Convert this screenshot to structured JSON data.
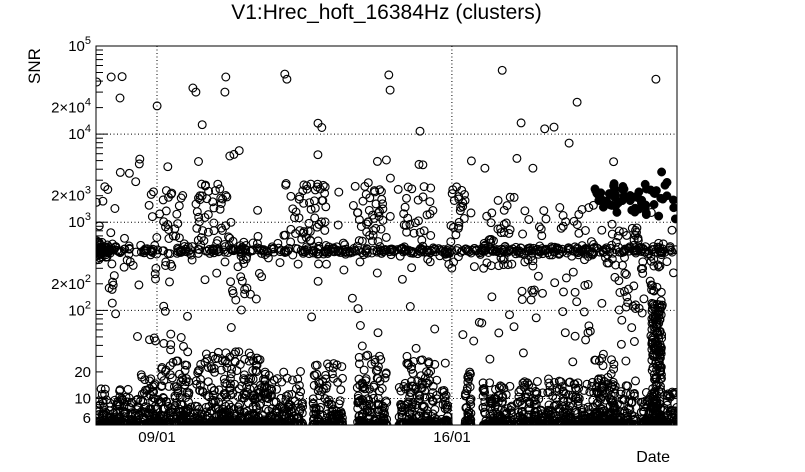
{
  "chart_data": {
    "type": "scatter",
    "title": "V1:Hrec_hoft_16384Hz (clusters)",
    "xlabel": "Date",
    "ylabel": "SNR",
    "background_color": "#ffffff",
    "marker_color": "#000000",
    "grid": "dotted",
    "x_axis": {
      "title": "Date",
      "range_days": 13.79,
      "labeled_ticks": [
        {
          "day": 1.447,
          "label": "09/01"
        },
        {
          "day": 8.447,
          "label": "16/01"
        }
      ],
      "minor_tick_start_day": 0.447,
      "minor_tick_step_days": 1
    },
    "y_axis": {
      "title": "SNR",
      "scale": "log",
      "min": 5,
      "max": 100000,
      "gridline_values": [
        10,
        100,
        1000,
        10000
      ],
      "labeled_ticks": [
        {
          "value": 100000,
          "mantissa": "10",
          "exp": "5"
        },
        {
          "value": 20000,
          "mantissa": "2×10",
          "exp": "4"
        },
        {
          "value": 10000,
          "mantissa": "10",
          "exp": "4"
        },
        {
          "value": 2000,
          "mantissa": "2×10",
          "exp": "3"
        },
        {
          "value": 1000,
          "mantissa": "10",
          "exp": "3"
        },
        {
          "value": 200,
          "mantissa": "2×10",
          "exp": "2"
        },
        {
          "value": 100,
          "mantissa": "10",
          "exp": "2"
        },
        {
          "value": 20,
          "mantissa": "20",
          "exp": ""
        },
        {
          "value": 10,
          "mantissa": "10",
          "exp": ""
        },
        {
          "value": 6,
          "mantissa": "6",
          "exp": ""
        }
      ]
    },
    "series": {
      "marker": "open-circle",
      "marker_radius": 3.9,
      "filled_marker_radius": 4.2,
      "seed": 42,
      "noise_mounds": [
        {
          "d0": 0.0,
          "d1": 1.0,
          "top_snr": 13,
          "n": 150,
          "p": 3
        },
        {
          "d0": 1.0,
          "d1": 1.55,
          "top_snr": 19,
          "n": 95,
          "p": 3
        },
        {
          "d0": 1.55,
          "d1": 2.5,
          "top_snr": 27,
          "n": 180,
          "p": 3
        },
        {
          "d0": 2.5,
          "d1": 3.9,
          "top_snr": 34,
          "n": 300,
          "p": 3
        },
        {
          "d0": 3.9,
          "d1": 4.91,
          "top_snr": 21,
          "n": 180,
          "p": 3
        },
        {
          "d0": 5.15,
          "d1": 5.86,
          "top_snr": 26,
          "n": 130,
          "p": 3
        },
        {
          "d0": 6.19,
          "d1": 6.91,
          "top_snr": 33,
          "n": 140,
          "p": 3
        },
        {
          "d0": 7.19,
          "d1": 8.09,
          "top_snr": 28,
          "n": 180,
          "p": 3
        },
        {
          "d0": 8.19,
          "d1": 8.38,
          "top_snr": 14,
          "n": 32,
          "p": 3
        },
        {
          "d0": 8.76,
          "d1": 8.9,
          "top_snr": 22,
          "n": 42,
          "p": 2.2
        },
        {
          "d0": 9.17,
          "d1": 9.87,
          "top_snr": 17,
          "n": 125,
          "p": 3
        },
        {
          "d0": 9.99,
          "d1": 10.82,
          "top_snr": 17,
          "n": 145,
          "p": 3
        },
        {
          "d0": 10.82,
          "d1": 12.81,
          "top_snr": 16,
          "n": 340,
          "p": 3
        },
        {
          "d0": 11.8,
          "d1": 12.3,
          "top_snr": 30,
          "n": 80,
          "p": 2.5
        },
        {
          "d0": 12.93,
          "d1": 13.19,
          "top_snr": 13,
          "n": 48,
          "p": 3
        },
        {
          "d0": 13.19,
          "d1": 13.43,
          "top_snr": 130,
          "n": 175,
          "p": 1.3
        },
        {
          "d0": 13.43,
          "d1": 13.79,
          "top_snr": 12,
          "n": 60,
          "p": 3
        }
      ],
      "band": {
        "center_snr": 480,
        "sigma_log": 0.022,
        "n": 430,
        "d0": 0,
        "d1": 13.79,
        "fuzz_n": 80,
        "fuzz_sigma_log": 0.12,
        "left_blob": {
          "d0": 0,
          "d1": 0.3,
          "n": 40,
          "sigma_log": 0.05
        }
      },
      "clusters": [
        {
          "d0": 0.0,
          "d1": 0.45,
          "n": 14,
          "snr_lo": 100,
          "snr_hi": 2600
        },
        {
          "d0": 1.3,
          "d1": 1.8,
          "n": 20,
          "snr_lo": 30,
          "snr_hi": 2200
        },
        {
          "d0": 1.55,
          "d1": 2.1,
          "n": 14,
          "snr_lo": 500,
          "snr_hi": 2500
        },
        {
          "d0": 2.37,
          "d1": 3.16,
          "n": 42,
          "snr_lo": 550,
          "snr_hi": 2800
        },
        {
          "d0": 3.16,
          "d1": 3.9,
          "n": 20,
          "snr_lo": 100,
          "snr_hi": 1200
        },
        {
          "d0": 4.58,
          "d1": 5.46,
          "n": 42,
          "snr_lo": 600,
          "snr_hi": 3000
        },
        {
          "d0": 6.1,
          "d1": 6.9,
          "n": 38,
          "snr_lo": 600,
          "snr_hi": 3000
        },
        {
          "d0": 7.3,
          "d1": 8.0,
          "n": 30,
          "snr_lo": 300,
          "snr_hi": 2600
        },
        {
          "d0": 8.4,
          "d1": 8.76,
          "n": 18,
          "snr_lo": 600,
          "snr_hi": 2600
        },
        {
          "d0": 9.2,
          "d1": 9.94,
          "n": 30,
          "snr_lo": 300,
          "snr_hi": 2600
        },
        {
          "d0": 10.1,
          "d1": 10.75,
          "n": 22,
          "snr_lo": 60,
          "snr_hi": 1600
        },
        {
          "d0": 11.0,
          "d1": 11.75,
          "n": 30,
          "snr_lo": 40,
          "snr_hi": 1600
        },
        {
          "d0": 12.3,
          "d1": 13.05,
          "n": 32,
          "snr_lo": 40,
          "snr_hi": 900
        },
        {
          "d0": 13.15,
          "d1": 13.45,
          "n": 22,
          "snr_lo": 25,
          "snr_hi": 400
        },
        {
          "d0": 11.9,
          "d1": 13.7,
          "n": 20,
          "snr_lo": 300,
          "snr_hi": 1000
        }
      ],
      "sprinkle": {
        "n": 130,
        "snr_lo": 25,
        "snr_hi": 6000
      },
      "filled_cluster": {
        "d0": 11.8,
        "d1": 13.78,
        "n": 58,
        "center_snr": 1850,
        "sigma_log": 0.11
      },
      "outliers": [
        [
          0.02,
          39000
        ],
        [
          0.36,
          44500
        ],
        [
          0.57,
          25700
        ],
        [
          0.62,
          45000
        ],
        [
          1.04,
          5200
        ],
        [
          1.45,
          20900
        ],
        [
          2.3,
          33400
        ],
        [
          2.37,
          30000
        ],
        [
          2.52,
          12800
        ],
        [
          3.06,
          30000
        ],
        [
          3.08,
          44500
        ],
        [
          3.4,
          6500
        ],
        [
          4.48,
          48000
        ],
        [
          4.53,
          42000
        ],
        [
          5.27,
          13300
        ],
        [
          5.36,
          11900
        ],
        [
          6.95,
          47000
        ],
        [
          6.98,
          31600
        ],
        [
          7.69,
          10800
        ],
        [
          9.23,
          4100
        ],
        [
          9.64,
          53000
        ],
        [
          9.99,
          5300
        ],
        [
          10.09,
          13400
        ],
        [
          10.37,
          4100
        ],
        [
          10.65,
          11500
        ],
        [
          10.87,
          12000
        ],
        [
          11.23,
          7900
        ],
        [
          11.42,
          23000
        ],
        [
          13.29,
          42000
        ]
      ]
    }
  }
}
